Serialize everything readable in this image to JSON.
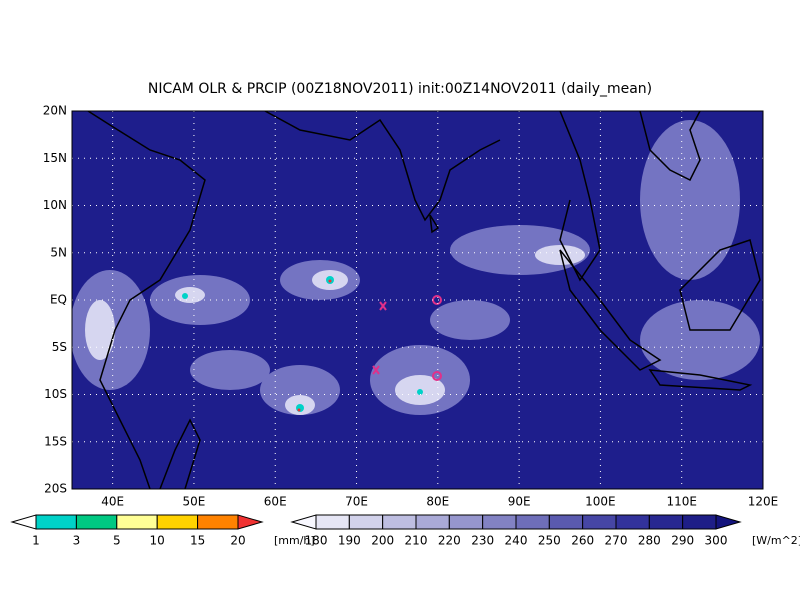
{
  "title": "NICAM OLR & PRCIP (00Z18NOV2011) init:00Z14NOV2011 (daily_mean)",
  "lat_labels": [
    "20N",
    "15N",
    "10N",
    "5N",
    "EQ",
    "5S",
    "10S",
    "15S",
    "20S"
  ],
  "lon_labels": [
    "40E",
    "50E",
    "60E",
    "70E",
    "80E",
    "90E",
    "100E",
    "110E",
    "120E"
  ],
  "precip_legend": {
    "labels": [
      "1",
      "3",
      "5",
      "10",
      "15",
      "20"
    ],
    "unit": "[mm/h]",
    "colors": [
      "#ffffff",
      "#00d2c8",
      "#00c882",
      "#ffff96",
      "#ffd200",
      "#ff8200",
      "#f03232"
    ]
  },
  "olr_legend": {
    "labels": [
      "180",
      "190",
      "200",
      "210",
      "220",
      "230",
      "240",
      "250",
      "260",
      "270",
      "280",
      "290",
      "300"
    ],
    "unit": "[W/m^2]",
    "colors": [
      "#f8f8ff",
      "#e6e6f5",
      "#d2d2eb",
      "#bebee1",
      "#aaaad7",
      "#9696cd",
      "#8282c3",
      "#6e6eb9",
      "#5a5aaf",
      "#4646a5",
      "#32329b",
      "#282891",
      "#1e1e87",
      "#14147d"
    ]
  }
}
